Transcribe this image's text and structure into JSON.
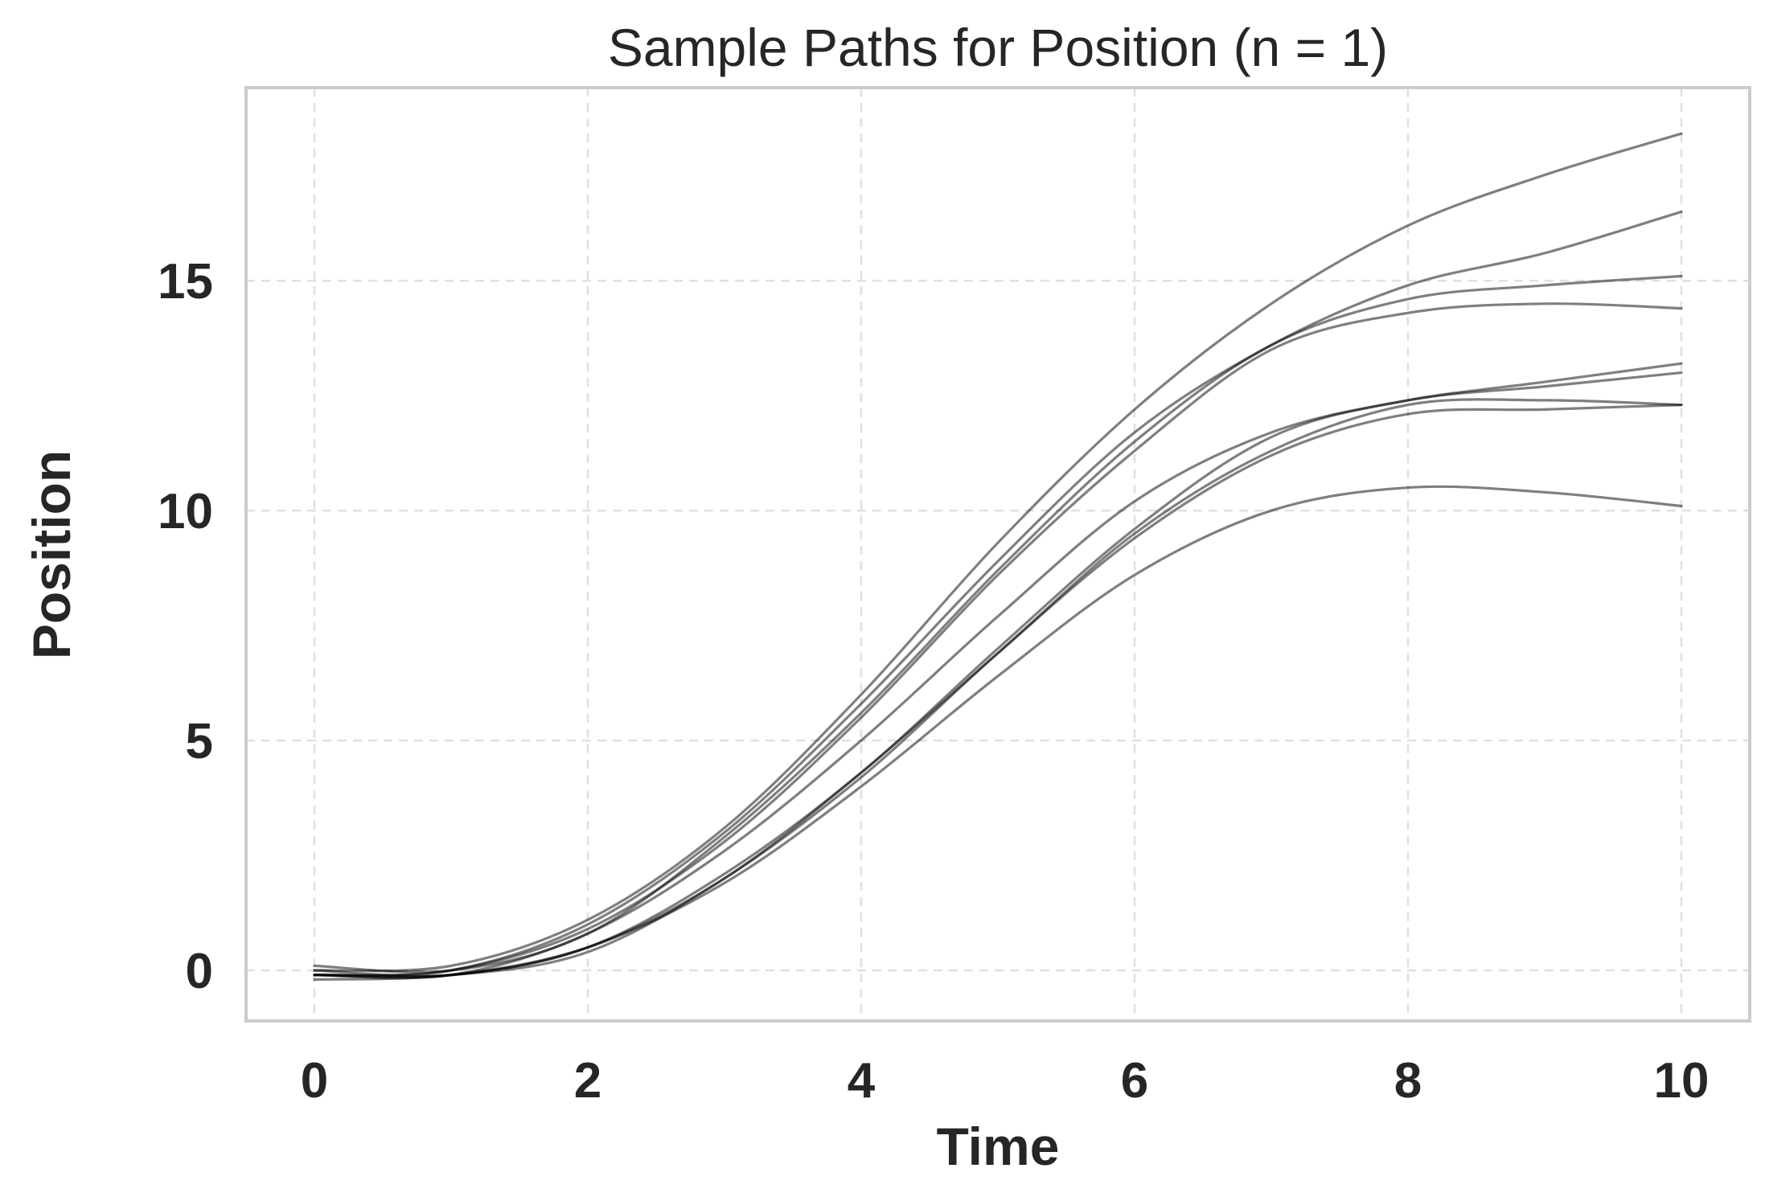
{
  "chart_data": {
    "type": "line",
    "title": "Sample Paths for Position (n = 1)",
    "xlabel": "Time",
    "ylabel": "Position",
    "xlim": [
      -0.5,
      10.5
    ],
    "ylim": [
      -1.1,
      19.2
    ],
    "xticks": [
      0,
      2,
      4,
      6,
      8,
      10
    ],
    "yticks": [
      0,
      5,
      10,
      15
    ],
    "grid": true,
    "line_color": "#000000",
    "x": [
      0,
      1,
      2,
      3,
      4,
      5,
      6,
      7,
      8,
      9,
      10
    ],
    "series": [
      {
        "values": [
          0.0,
          0.1,
          1.1,
          3.1,
          6.0,
          9.3,
          12.2,
          14.5,
          16.2,
          17.3,
          18.2
        ]
      },
      {
        "values": [
          -0.1,
          0.0,
          1.0,
          3.0,
          5.8,
          8.9,
          11.7,
          13.6,
          14.9,
          15.6,
          16.5
        ]
      },
      {
        "values": [
          0.1,
          0.0,
          0.8,
          2.9,
          5.6,
          8.7,
          11.5,
          13.6,
          14.6,
          14.9,
          15.1
        ]
      },
      {
        "values": [
          -0.1,
          0.0,
          0.9,
          2.8,
          5.5,
          8.6,
          11.3,
          13.5,
          14.3,
          14.5,
          14.4
        ]
      },
      {
        "values": [
          -0.1,
          -0.1,
          0.8,
          2.6,
          5.0,
          7.7,
          10.2,
          11.7,
          12.4,
          12.8,
          13.2
        ]
      },
      {
        "values": [
          -0.1,
          -0.1,
          0.5,
          2.1,
          4.3,
          7.0,
          9.6,
          11.6,
          12.4,
          12.7,
          13.0
        ]
      },
      {
        "values": [
          0.0,
          -0.1,
          0.5,
          2.0,
          4.3,
          6.9,
          9.5,
          11.3,
          12.3,
          12.4,
          12.3
        ]
      },
      {
        "values": [
          -0.1,
          -0.1,
          0.4,
          2.0,
          4.2,
          6.9,
          9.4,
          11.2,
          12.1,
          12.2,
          12.3
        ]
      },
      {
        "values": [
          -0.2,
          -0.1,
          0.5,
          1.9,
          4.0,
          6.4,
          8.6,
          10.0,
          10.5,
          10.4,
          10.1
        ]
      }
    ]
  }
}
